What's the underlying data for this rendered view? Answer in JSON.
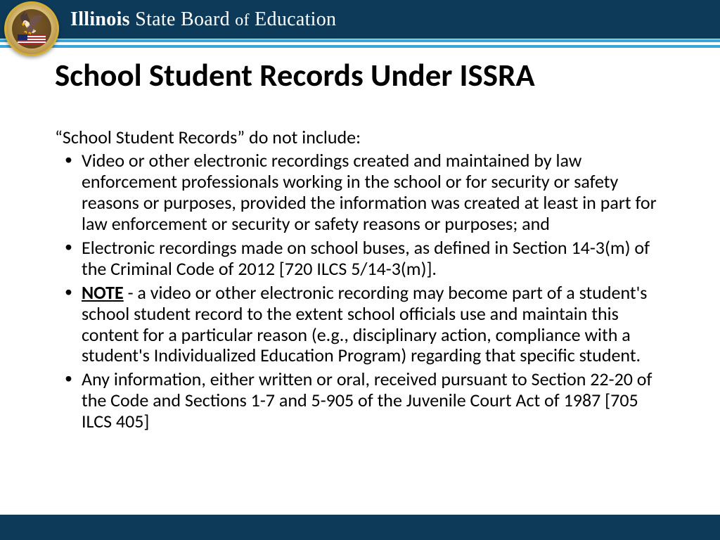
{
  "colors": {
    "header_bg": "#0e3a5a",
    "accent_blue": "#3aa6d8",
    "text": "#000000",
    "page_bg": "#ffffff"
  },
  "header": {
    "org_bold1": "Illinois",
    "org_rest1": " State Board ",
    "org_of": "of",
    "org_rest2": " Education"
  },
  "title": "School Student Records Under ISSRA",
  "intro": "“School Student Records” do not include:",
  "bullets": [
    "Video or other electronic recordings created and maintained by law enforcement professionals working in the school or for security or safety reasons or purposes, provided the information was created at least in part for law enforcement or security or safety reasons or purposes; and",
    "Electronic recordings made on school buses, as defined in Section 14-3(m) of the Criminal Code of 2012 [720 ILCS 5/14-3(m)].",
    " - a video or other electronic recording may become part of a student's school student record to the extent school officials use and maintain this content for a particular reason (e.g., disciplinary action, compliance with a student's Individualized Education Program) regarding that specific student.",
    "Any information, either written or oral, received pursuant to Section 22-20 of the Code and Sections 1-7 and 5-905 of the Juvenile Court Act of 1987 [705 ILCS 405]"
  ],
  "note_label": "NOTE",
  "typography": {
    "title_fontsize": 45,
    "body_fontsize": 26,
    "header_fontsize": 28
  }
}
